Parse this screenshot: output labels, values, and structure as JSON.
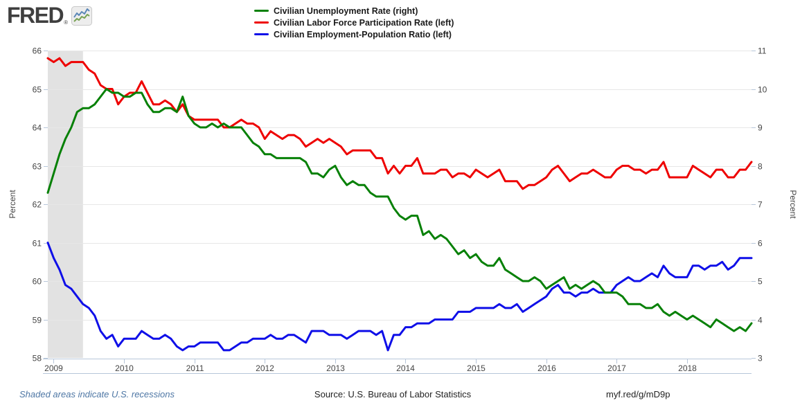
{
  "header": {
    "logo_text": "FRED",
    "registered_mark": "®",
    "logo_icon": "fred-sparkline-icon"
  },
  "legend": [
    {
      "label": "Civilian Unemployment Rate (right)",
      "color": "#068006"
    },
    {
      "label": "Civilian Labor Force Participation Rate (left)",
      "color": "#ee0000"
    },
    {
      "label": "Civilian Employment-Population Ratio (left)",
      "color": "#0f0fe8"
    }
  ],
  "footer": {
    "recession_note": "Shaded areas indicate U.S. recessions",
    "source": "Source: U.S. Bureau of Labor Statistics",
    "link": "myf.red/g/mD9p"
  },
  "chart_data": {
    "type": "line",
    "frequency": "monthly",
    "x_start": "2008-12",
    "x_end": "2018-12",
    "grid": "horizontal",
    "legend_position": "top",
    "left_axis": {
      "label": "Percent",
      "min": 58,
      "max": 66,
      "ticks": [
        58,
        59,
        60,
        61,
        62,
        63,
        64,
        65,
        66
      ]
    },
    "right_axis": {
      "label": "Percent",
      "min": 3,
      "max": 11,
      "ticks": [
        3,
        4,
        5,
        6,
        7,
        8,
        9,
        10,
        11
      ]
    },
    "x_ticks": [
      {
        "index": 1,
        "label": "2009"
      },
      {
        "index": 13,
        "label": "2010"
      },
      {
        "index": 25,
        "label": "2011"
      },
      {
        "index": 37,
        "label": "2012"
      },
      {
        "index": 49,
        "label": "2013"
      },
      {
        "index": 61,
        "label": "2014"
      },
      {
        "index": 73,
        "label": "2015"
      },
      {
        "index": 85,
        "label": "2016"
      },
      {
        "index": 97,
        "label": "2017"
      },
      {
        "index": 109,
        "label": "2018"
      }
    ],
    "recession_bands": [
      {
        "start_index": 0,
        "end_index": 6
      }
    ],
    "series": [
      {
        "name": "Civilian Unemployment Rate (right)",
        "axis": "right",
        "color": "#068006",
        "values": [
          7.3,
          7.8,
          8.3,
          8.7,
          9.0,
          9.4,
          9.5,
          9.5,
          9.6,
          9.8,
          10.0,
          9.9,
          9.9,
          9.8,
          9.8,
          9.9,
          9.9,
          9.6,
          9.4,
          9.4,
          9.5,
          9.5,
          9.4,
          9.8,
          9.3,
          9.1,
          9.0,
          9.0,
          9.1,
          9.0,
          9.1,
          9.0,
          9.0,
          9.0,
          8.8,
          8.6,
          8.5,
          8.3,
          8.3,
          8.2,
          8.2,
          8.2,
          8.2,
          8.2,
          8.1,
          7.8,
          7.8,
          7.7,
          7.9,
          8.0,
          7.7,
          7.5,
          7.6,
          7.5,
          7.5,
          7.3,
          7.2,
          7.2,
          7.2,
          6.9,
          6.7,
          6.6,
          6.7,
          6.7,
          6.2,
          6.3,
          6.1,
          6.2,
          6.1,
          5.9,
          5.7,
          5.8,
          5.6,
          5.7,
          5.5,
          5.4,
          5.4,
          5.6,
          5.3,
          5.2,
          5.1,
          5.0,
          5.0,
          5.1,
          5.0,
          4.8,
          4.9,
          5.0,
          5.1,
          4.8,
          4.9,
          4.8,
          4.9,
          5.0,
          4.9,
          4.7,
          4.7,
          4.7,
          4.6,
          4.4,
          4.4,
          4.4,
          4.3,
          4.3,
          4.4,
          4.2,
          4.1,
          4.2,
          4.1,
          4.0,
          4.1,
          4.0,
          3.9,
          3.8,
          4.0,
          3.9,
          3.8,
          3.7,
          3.8,
          3.7,
          3.9
        ]
      },
      {
        "name": "Civilian Labor Force Participation Rate (left)",
        "axis": "left",
        "color": "#ee0000",
        "values": [
          65.8,
          65.7,
          65.8,
          65.6,
          65.7,
          65.7,
          65.7,
          65.5,
          65.4,
          65.1,
          65.0,
          65.0,
          64.6,
          64.8,
          64.9,
          64.9,
          65.2,
          64.9,
          64.6,
          64.6,
          64.7,
          64.6,
          64.4,
          64.6,
          64.3,
          64.2,
          64.2,
          64.2,
          64.2,
          64.2,
          64.0,
          64.0,
          64.1,
          64.2,
          64.1,
          64.1,
          64.0,
          63.7,
          63.9,
          63.8,
          63.7,
          63.8,
          63.8,
          63.7,
          63.5,
          63.6,
          63.7,
          63.6,
          63.7,
          63.6,
          63.5,
          63.3,
          63.4,
          63.4,
          63.4,
          63.4,
          63.2,
          63.2,
          62.8,
          63.0,
          62.8,
          63.0,
          63.0,
          63.2,
          62.8,
          62.8,
          62.8,
          62.9,
          62.9,
          62.7,
          62.8,
          62.8,
          62.7,
          62.9,
          62.8,
          62.7,
          62.8,
          62.9,
          62.6,
          62.6,
          62.6,
          62.4,
          62.5,
          62.5,
          62.6,
          62.7,
          62.9,
          63.0,
          62.8,
          62.6,
          62.7,
          62.8,
          62.8,
          62.9,
          62.8,
          62.7,
          62.7,
          62.9,
          63.0,
          63.0,
          62.9,
          62.9,
          62.8,
          62.9,
          62.9,
          63.1,
          62.7,
          62.7,
          62.7,
          62.7,
          63.0,
          62.9,
          62.8,
          62.7,
          62.9,
          62.9,
          62.7,
          62.7,
          62.9,
          62.9,
          63.1
        ]
      },
      {
        "name": "Civilian Employment-Population Ratio (left)",
        "axis": "left",
        "color": "#0f0fe8",
        "values": [
          61.0,
          60.6,
          60.3,
          59.9,
          59.8,
          59.6,
          59.4,
          59.3,
          59.1,
          58.7,
          58.5,
          58.6,
          58.3,
          58.5,
          58.5,
          58.5,
          58.7,
          58.6,
          58.5,
          58.5,
          58.6,
          58.5,
          58.3,
          58.2,
          58.3,
          58.3,
          58.4,
          58.4,
          58.4,
          58.4,
          58.2,
          58.2,
          58.3,
          58.4,
          58.4,
          58.5,
          58.5,
          58.5,
          58.6,
          58.5,
          58.5,
          58.6,
          58.6,
          58.5,
          58.4,
          58.7,
          58.7,
          58.7,
          58.6,
          58.6,
          58.6,
          58.5,
          58.6,
          58.7,
          58.7,
          58.7,
          58.6,
          58.7,
          58.2,
          58.6,
          58.6,
          58.8,
          58.8,
          58.9,
          58.9,
          58.9,
          59.0,
          59.0,
          59.0,
          59.0,
          59.2,
          59.2,
          59.2,
          59.3,
          59.3,
          59.3,
          59.3,
          59.4,
          59.3,
          59.3,
          59.4,
          59.2,
          59.3,
          59.4,
          59.5,
          59.6,
          59.8,
          59.9,
          59.7,
          59.7,
          59.6,
          59.7,
          59.7,
          59.8,
          59.7,
          59.7,
          59.7,
          59.9,
          60.0,
          60.1,
          60.0,
          60.0,
          60.1,
          60.2,
          60.1,
          60.4,
          60.2,
          60.1,
          60.1,
          60.1,
          60.4,
          60.4,
          60.3,
          60.4,
          60.4,
          60.5,
          60.3,
          60.4,
          60.6,
          60.6,
          60.6
        ]
      }
    ],
    "style": {
      "recession_fill": "#e2e2e2",
      "gridline_color": "#e7e7e7",
      "axis_line_color": "#b7c6d9",
      "tick_label_color": "#444444"
    }
  }
}
